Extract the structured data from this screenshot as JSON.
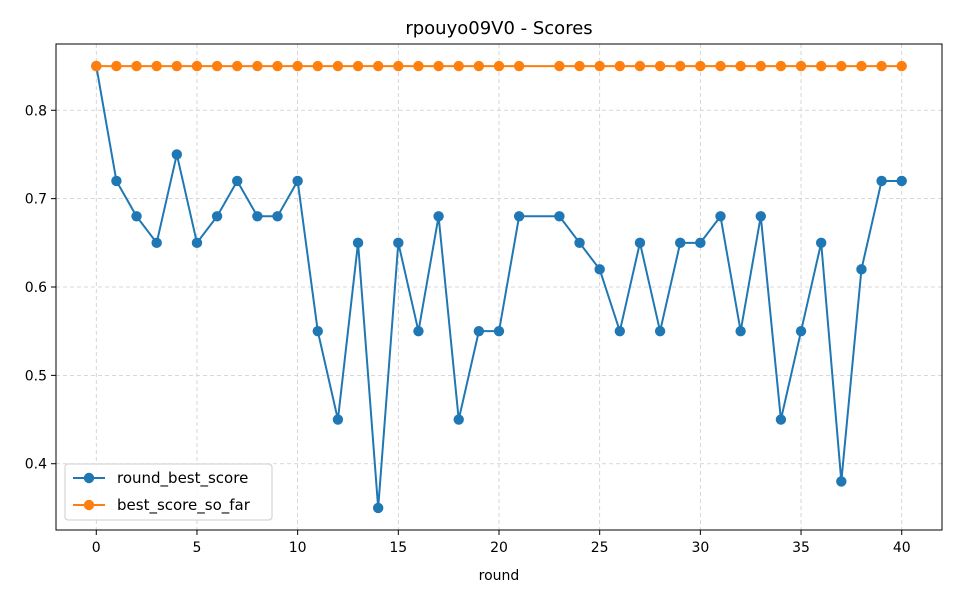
{
  "chart_data": {
    "type": "line",
    "title": "rpouyo09V0 - Scores",
    "xlabel": "round",
    "ylabel": "",
    "xlim": [
      -2,
      42
    ],
    "ylim": [
      0.325,
      0.875
    ],
    "xticks": [
      0,
      5,
      10,
      15,
      20,
      25,
      30,
      35,
      40
    ],
    "yticks": [
      0.4,
      0.5,
      0.6,
      0.7,
      0.8
    ],
    "x": [
      0,
      1,
      2,
      3,
      4,
      5,
      6,
      7,
      8,
      9,
      10,
      11,
      12,
      13,
      14,
      15,
      16,
      17,
      18,
      19,
      20,
      21,
      23,
      24,
      25,
      26,
      27,
      28,
      29,
      30,
      31,
      32,
      33,
      34,
      35,
      36,
      37,
      38,
      39,
      40
    ],
    "grid": true,
    "legend_position": "lower-left",
    "series": [
      {
        "name": "round_best_score",
        "color": "#1f77b4",
        "values": [
          0.85,
          0.72,
          0.68,
          0.65,
          0.75,
          0.65,
          0.68,
          0.72,
          0.68,
          0.68,
          0.72,
          0.55,
          0.45,
          0.65,
          0.35,
          0.65,
          0.55,
          0.68,
          0.45,
          0.55,
          0.55,
          0.68,
          0.68,
          0.65,
          0.62,
          0.55,
          0.65,
          0.55,
          0.65,
          0.65,
          0.68,
          0.55,
          0.68,
          0.45,
          0.55,
          0.65,
          0.38,
          0.62,
          0.72,
          0.72
        ]
      },
      {
        "name": "best_score_so_far",
        "color": "#ff7f0e",
        "values": [
          0.85,
          0.85,
          0.85,
          0.85,
          0.85,
          0.85,
          0.85,
          0.85,
          0.85,
          0.85,
          0.85,
          0.85,
          0.85,
          0.85,
          0.85,
          0.85,
          0.85,
          0.85,
          0.85,
          0.85,
          0.85,
          0.85,
          0.85,
          0.85,
          0.85,
          0.85,
          0.85,
          0.85,
          0.85,
          0.85,
          0.85,
          0.85,
          0.85,
          0.85,
          0.85,
          0.85,
          0.85,
          0.85,
          0.85,
          0.85
        ]
      }
    ]
  }
}
